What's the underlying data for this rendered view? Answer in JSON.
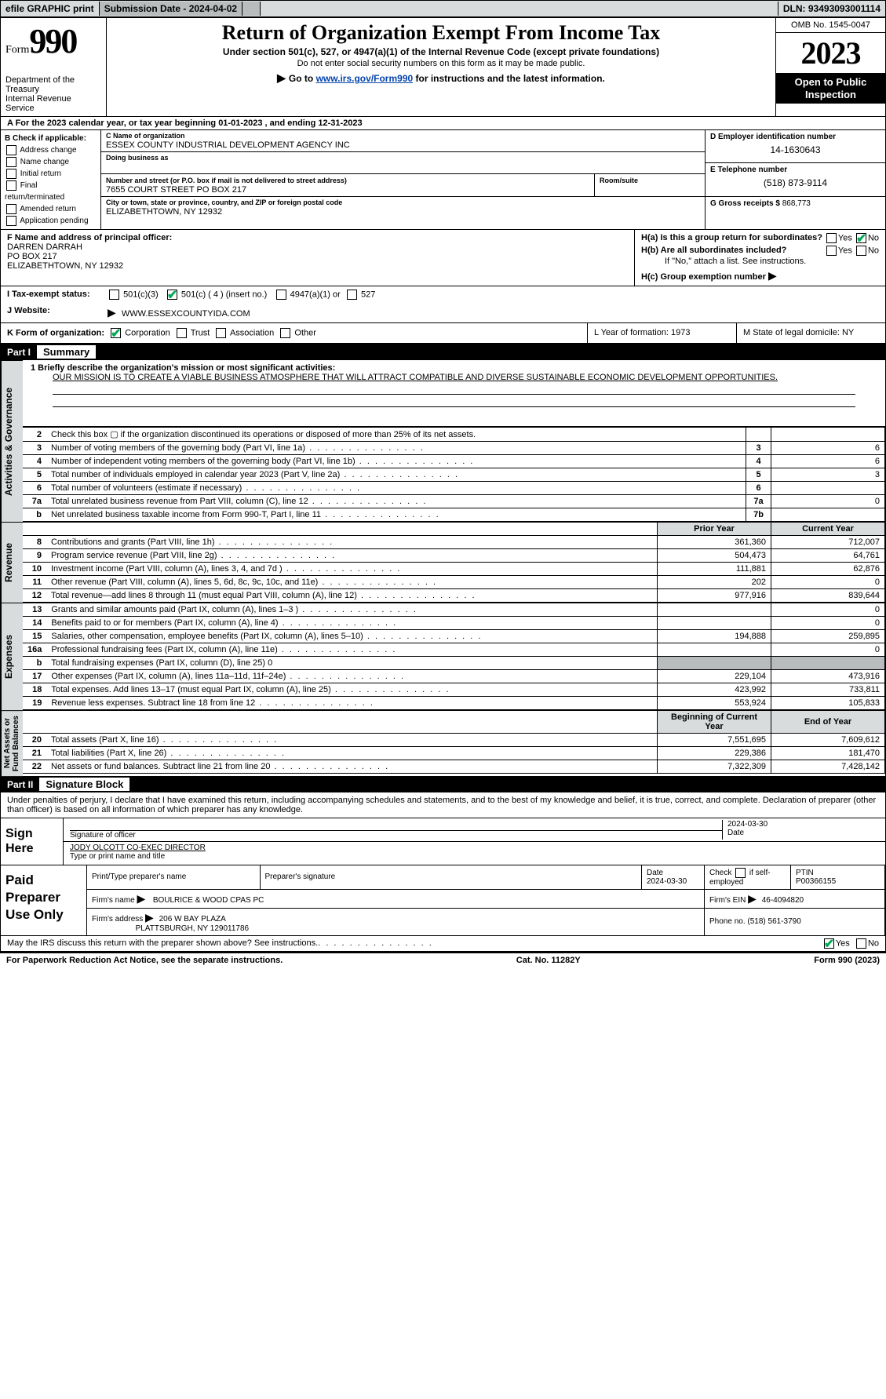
{
  "topbar": {
    "efile": "efile GRAPHIC print",
    "submission": "Submission Date - 2024-04-02",
    "dln": "DLN: 93493093001114"
  },
  "header": {
    "form_word": "Form",
    "form_num": "990",
    "title": "Return of Organization Exempt From Income Tax",
    "sub": "Under section 501(c), 527, or 4947(a)(1) of the Internal Revenue Code (except private foundations)",
    "sub2": "Do not enter social security numbers on this form as it may be made public.",
    "sub3_a": "Go to ",
    "sub3_link": "www.irs.gov/Form990",
    "sub3_b": " for instructions and the latest information.",
    "dept": "Department of the Treasury\nInternal Revenue Service",
    "omb": "OMB No. 1545-0047",
    "year": "2023",
    "open": "Open to Public Inspection"
  },
  "row_a": "A   For the 2023 calendar year, or tax year beginning 01-01-2023    , and ending 12-31-2023",
  "col_b": {
    "label": "B Check if applicable:",
    "items": [
      "Address change",
      "Name change",
      "Initial return",
      "Final return/terminated",
      "Amended return",
      "Application pending"
    ]
  },
  "col_c": {
    "name_label": "C Name of organization",
    "name": "ESSEX COUNTY INDUSTRIAL DEVELOPMENT AGENCY INC",
    "dba_label": "Doing business as",
    "dba": "",
    "street_label": "Number and street (or P.O. box if mail is not delivered to street address)",
    "street": "7655 COURT STREET PO BOX 217",
    "room_label": "Room/suite",
    "room": "",
    "city_label": "City or town, state or province, country, and ZIP or foreign postal code",
    "city": "ELIZABETHTOWN, NY  12932"
  },
  "col_d": {
    "ein_label": "D Employer identification number",
    "ein": "14-1630643",
    "tel_label": "E Telephone number",
    "tel": "(518) 873-9114",
    "gross_label": "G Gross receipts $",
    "gross": "868,773"
  },
  "fgh": {
    "f_label": "F  Name and address of principal officer:",
    "f_name": "DARREN DARRAH",
    "f_addr1": "PO BOX 217",
    "f_addr2": "ELIZABETHTOWN, NY  12932",
    "ha": "H(a)  Is this a group return for subordinates?",
    "hb": "H(b)  Are all subordinates included?",
    "hb_note": "If \"No,\" attach a list. See instructions.",
    "hc": "H(c)  Group exemption number",
    "yes": "Yes",
    "no": "No"
  },
  "row_i": {
    "label": "I   Tax-exempt status:",
    "o1": "501(c)(3)",
    "o2": "501(c) ( 4 ) (insert no.)",
    "o3": "4947(a)(1) or",
    "o4": "527"
  },
  "row_j": {
    "label": "J   Website:",
    "val": "WWW.ESSEXCOUNTYIDA.COM"
  },
  "row_k": {
    "label": "K Form of organization:",
    "o1": "Corporation",
    "o2": "Trust",
    "o3": "Association",
    "o4": "Other",
    "l": "L Year of formation: 1973",
    "m": "M State of legal domicile: NY"
  },
  "part1": {
    "label": "Part I",
    "title": "Summary"
  },
  "part2": {
    "label": "Part II",
    "title": "Signature Block"
  },
  "vtabs": {
    "ag": "Activities & Governance",
    "rev": "Revenue",
    "exp": "Expenses",
    "net": "Net Assets or\nFund Balances"
  },
  "mission": {
    "q": "1   Briefly describe the organization's mission or most significant activities:",
    "a": "OUR MISSION IS TO CREATE A VIABLE BUSINESS ATMOSPHERE THAT WILL ATTRACT COMPATIBLE AND DIVERSE SUSTAINABLE ECONOMIC DEVELOPMENT OPPORTUNITIES."
  },
  "lines_ag": [
    {
      "n": "2",
      "d": "Check this box ▢ if the organization discontinued its operations or disposed of more than 25% of its net assets.",
      "k": "",
      "v": ""
    },
    {
      "n": "3",
      "d": "Number of voting members of the governing body (Part VI, line 1a)",
      "k": "3",
      "v": "6"
    },
    {
      "n": "4",
      "d": "Number of independent voting members of the governing body (Part VI, line 1b)",
      "k": "4",
      "v": "6"
    },
    {
      "n": "5",
      "d": "Total number of individuals employed in calendar year 2023 (Part V, line 2a)",
      "k": "5",
      "v": "3"
    },
    {
      "n": "6",
      "d": "Total number of volunteers (estimate if necessary)",
      "k": "6",
      "v": ""
    },
    {
      "n": "7a",
      "d": "Total unrelated business revenue from Part VIII, column (C), line 12",
      "k": "7a",
      "v": "0"
    },
    {
      "n": "b",
      "d": "Net unrelated business taxable income from Form 990-T, Part I, line 11",
      "k": "7b",
      "v": ""
    }
  ],
  "yr_hdr": {
    "prior": "Prior Year",
    "curr": "Current Year"
  },
  "lines_rev": [
    {
      "n": "8",
      "d": "Contributions and grants (Part VIII, line 1h)",
      "p": "361,360",
      "c": "712,007"
    },
    {
      "n": "9",
      "d": "Program service revenue (Part VIII, line 2g)",
      "p": "504,473",
      "c": "64,761"
    },
    {
      "n": "10",
      "d": "Investment income (Part VIII, column (A), lines 3, 4, and 7d )",
      "p": "111,881",
      "c": "62,876"
    },
    {
      "n": "11",
      "d": "Other revenue (Part VIII, column (A), lines 5, 6d, 8c, 9c, 10c, and 11e)",
      "p": "202",
      "c": "0"
    },
    {
      "n": "12",
      "d": "Total revenue—add lines 8 through 11 (must equal Part VIII, column (A), line 12)",
      "p": "977,916",
      "c": "839,644"
    }
  ],
  "lines_exp": [
    {
      "n": "13",
      "d": "Grants and similar amounts paid (Part IX, column (A), lines 1–3 )",
      "p": "",
      "c": "0"
    },
    {
      "n": "14",
      "d": "Benefits paid to or for members (Part IX, column (A), line 4)",
      "p": "",
      "c": "0"
    },
    {
      "n": "15",
      "d": "Salaries, other compensation, employee benefits (Part IX, column (A), lines 5–10)",
      "p": "194,888",
      "c": "259,895"
    },
    {
      "n": "16a",
      "d": "Professional fundraising fees (Part IX, column (A), line 11e)",
      "p": "",
      "c": "0"
    },
    {
      "n": "b",
      "d": "Total fundraising expenses (Part IX, column (D), line 25) 0",
      "p": "SHADE",
      "c": "SHADE"
    },
    {
      "n": "17",
      "d": "Other expenses (Part IX, column (A), lines 11a–11d, 11f–24e)",
      "p": "229,104",
      "c": "473,916"
    },
    {
      "n": "18",
      "d": "Total expenses. Add lines 13–17 (must equal Part IX, column (A), line 25)",
      "p": "423,992",
      "c": "733,811"
    },
    {
      "n": "19",
      "d": "Revenue less expenses. Subtract line 18 from line 12",
      "p": "553,924",
      "c": "105,833"
    }
  ],
  "net_hdr": {
    "b": "Beginning of Current Year",
    "e": "End of Year"
  },
  "lines_net": [
    {
      "n": "20",
      "d": "Total assets (Part X, line 16)",
      "p": "7,551,695",
      "c": "7,609,612"
    },
    {
      "n": "21",
      "d": "Total liabilities (Part X, line 26)",
      "p": "229,386",
      "c": "181,470"
    },
    {
      "n": "22",
      "d": "Net assets or fund balances. Subtract line 21 from line 20",
      "p": "7,322,309",
      "c": "7,428,142"
    }
  ],
  "sig": {
    "decl": "Under penalties of perjury, I declare that I have examined this return, including accompanying schedules and statements, and to the best of my knowledge and belief, it is true, correct, and complete. Declaration of preparer (other than officer) is based on all information of which preparer has any knowledge.",
    "sign_here": "Sign Here",
    "sig_of": "Signature of officer",
    "date": "2024-03-30",
    "name": "JODY OLCOTT  CO-EXEC DIRECTOR",
    "type": "Type or print name and title"
  },
  "paid": {
    "label": "Paid Preparer Use Only",
    "h1": "Print/Type preparer's name",
    "h2": "Preparer's signature",
    "h3": "Date",
    "h3v": "2024-03-30",
    "h4a": "Check",
    "h4b": "if self-employed",
    "h5": "PTIN",
    "h5v": "P00366155",
    "firm_name_l": "Firm's name",
    "firm_name": "BOULRICE & WOOD CPAS PC",
    "firm_ein_l": "Firm's EIN",
    "firm_ein": "46-4094820",
    "firm_addr_l": "Firm's address",
    "firm_addr1": "206 W BAY PLAZA",
    "firm_addr2": "PLATTSBURGH, NY  129011786",
    "phone_l": "Phone no.",
    "phone": "(518) 561-3790"
  },
  "discuss": {
    "q": "May the IRS discuss this return with the preparer shown above? See instructions.",
    "yes": "Yes",
    "no": "No"
  },
  "footer": {
    "l": "For Paperwork Reduction Act Notice, see the separate instructions.",
    "m": "Cat. No. 11282Y",
    "r": "Form 990 (2023)"
  }
}
